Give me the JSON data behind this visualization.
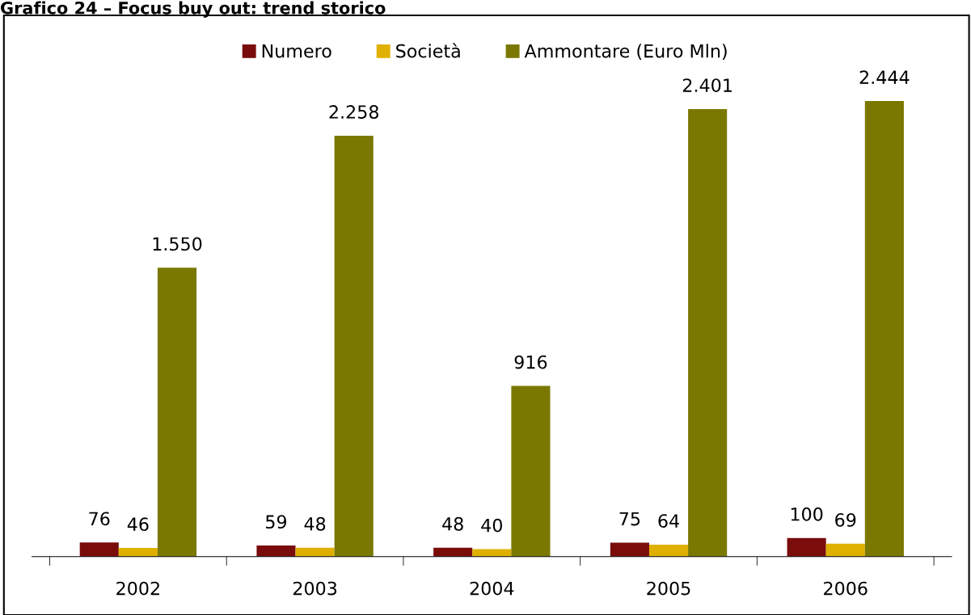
{
  "chart_data": {
    "type": "bar",
    "title": "Grafico 24 – Focus buy out: trend storico",
    "categories": [
      "2002",
      "2003",
      "2004",
      "2005",
      "2006"
    ],
    "series": [
      {
        "name": "Numero",
        "color": "#7a0c0c",
        "values": [
          76,
          59,
          48,
          75,
          100
        ],
        "value_labels": [
          "76",
          "59",
          "48",
          "75",
          "100"
        ]
      },
      {
        "name": "Società",
        "color": "#e0b000",
        "values": [
          46,
          48,
          40,
          64,
          69
        ],
        "value_labels": [
          "46",
          "48",
          "40",
          "64",
          "69"
        ]
      },
      {
        "name": "Ammontare (Euro Mln)",
        "color": "#7a7800",
        "values": [
          1550,
          2258,
          916,
          2401,
          2444
        ],
        "value_labels": [
          "1.550",
          "2.258",
          "916",
          "2.401",
          "2.444"
        ]
      }
    ],
    "legend": "top",
    "grid": false
  }
}
